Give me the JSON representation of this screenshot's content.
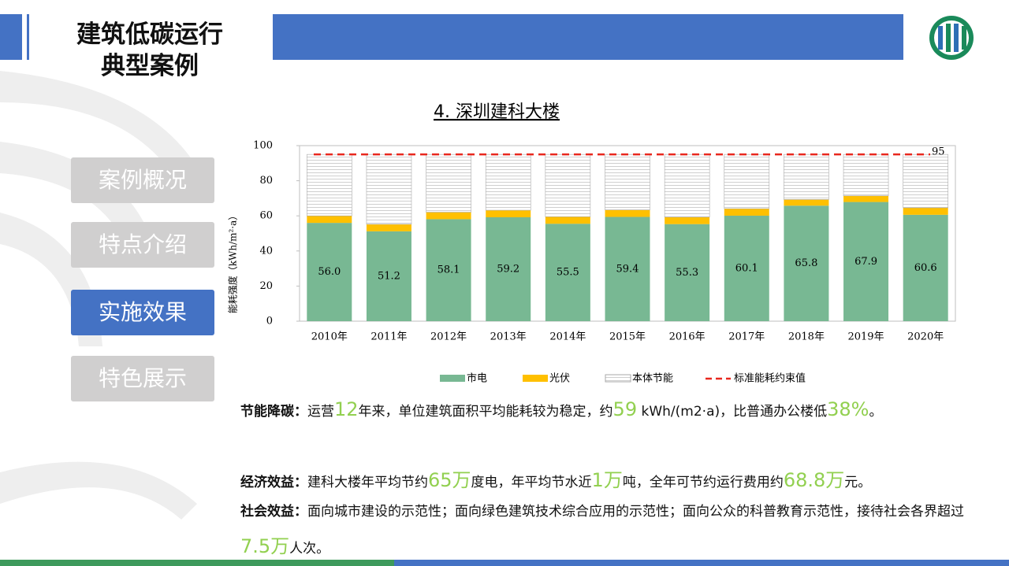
{
  "header": {
    "title_lines": [
      "建筑低碳运行",
      "典型案例"
    ]
  },
  "menu": {
    "items": [
      "案例概况",
      "特点介绍",
      "实施效果",
      "特色展示"
    ],
    "active": 2
  },
  "chart_data": {
    "type": "stacked-bar",
    "title": "4. 深圳建科大楼",
    "y_label": "能耗强度（kWh/m²·a）",
    "categories": [
      "2010年",
      "2011年",
      "2012年",
      "2013年",
      "2014年",
      "2015年",
      "2016年",
      "2017年",
      "2018年",
      "2019年",
      "2020年"
    ],
    "series": [
      {
        "name": "市电",
        "color": "#78b893",
        "values": [
          56.0,
          51.2,
          58.1,
          59.2,
          55.5,
          59.4,
          55.3,
          60.1,
          65.8,
          67.9,
          60.6
        ],
        "value_labels": [
          "56.0",
          "51.2",
          "58.1",
          "59.2",
          "55.5",
          "59.4",
          "55.3",
          "60.1",
          "65.8",
          "67.9",
          "60.6"
        ]
      },
      {
        "name": "光伏",
        "color": "#ffc000",
        "values": [
          4,
          4,
          4,
          4,
          4,
          4,
          4,
          4,
          3.5,
          3.5,
          4
        ]
      },
      {
        "name": "本体节能",
        "color": "#ffffff",
        "pattern": "hlines",
        "values": [
          35,
          39.8,
          32.9,
          31.8,
          35.5,
          31.6,
          35.7,
          30.9,
          25.7,
          23.6,
          30.4
        ]
      }
    ],
    "reference_line": {
      "name": "标准能耗约束值",
      "value": 95,
      "color": "#e8281e"
    },
    "ylim": [
      0,
      100
    ],
    "yticks": [
      0,
      20,
      40,
      60,
      80,
      100
    ],
    "legend": "bottom"
  },
  "paragraphs": [
    {
      "label": "节能降碳：",
      "parts": [
        "运营",
        "12",
        "年来，单位建筑面积平均能耗较为稳定，约",
        "59",
        " kWh/(m2·a)，比普通办公楼低",
        "38%",
        "。"
      ]
    },
    {
      "label": "经济效益：",
      "parts": [
        "建科大楼年平均节约",
        "65万",
        "度电，年平均节水近",
        "1万",
        "吨，全年可节约运行费用约",
        "68.8万",
        "元。"
      ]
    },
    {
      "label": "社会效益：",
      "parts": [
        "面向城市建设的示范性；面向绿色建筑技术综合应用的示范性；面向公众的科普教育示范性，接待社会各界超过",
        "7.5万",
        "人次。"
      ]
    }
  ]
}
